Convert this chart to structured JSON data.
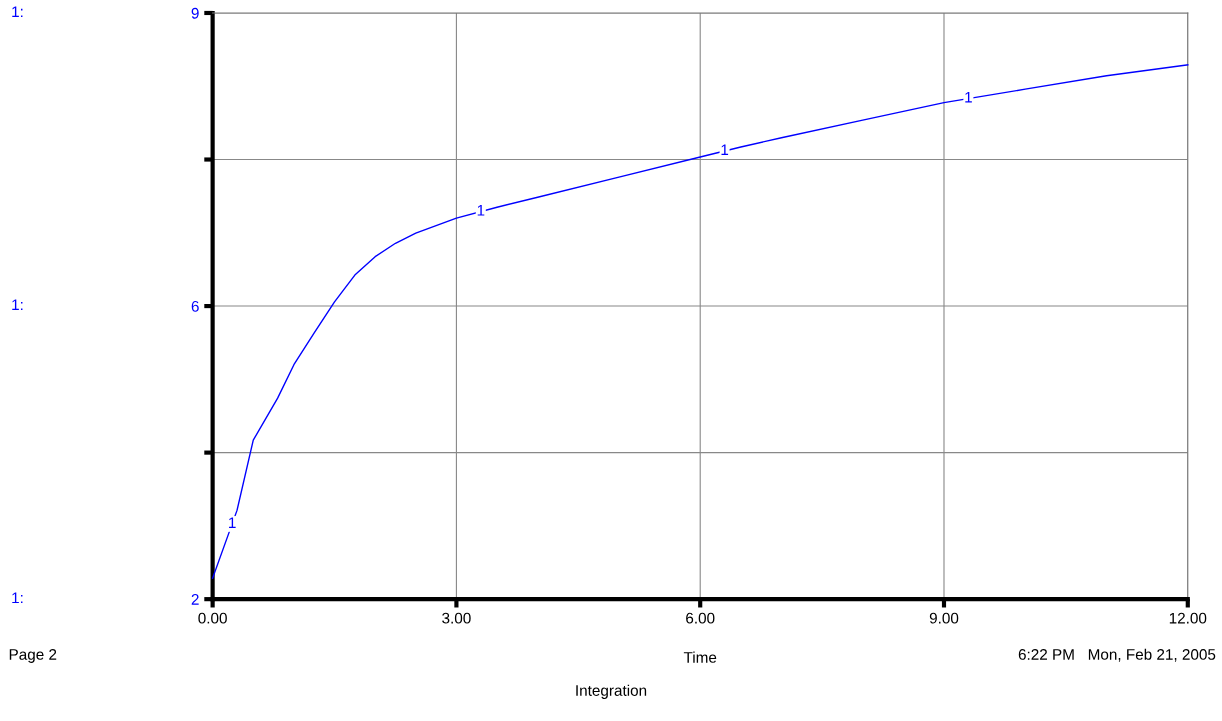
{
  "chart_data": {
    "type": "line",
    "title": "Integration",
    "xlabel": "Time",
    "x": [
      0,
      0.3,
      0.5,
      0.8,
      1.0,
      1.25,
      1.5,
      1.75,
      2.0,
      2.25,
      2.5,
      3.0,
      3.5,
      4.0,
      5.0,
      6.0,
      6.5,
      7.0,
      8.0,
      9.0,
      10.0,
      11.0,
      12.0
    ],
    "series": [
      {
        "name": "1",
        "color": "#0000ff",
        "values": [
          2.25,
          3.06,
          3.9,
          4.4,
          4.8,
          5.18,
          5.55,
          5.87,
          6.09,
          6.25,
          6.37,
          6.55,
          6.68,
          6.8,
          7.04,
          7.28,
          7.4,
          7.51,
          7.72,
          7.93,
          8.09,
          8.25,
          8.38
        ]
      }
    ],
    "xlim": [
      0,
      12
    ],
    "xticks": [
      {
        "value": 0,
        "label": "0.00"
      },
      {
        "value": 3,
        "label": "3.00"
      },
      {
        "value": 6,
        "label": "6.00"
      },
      {
        "value": 9,
        "label": "9.00"
      },
      {
        "value": 12,
        "label": "12.00"
      }
    ],
    "ylim": [
      2,
      9
    ],
    "yticks": [
      2,
      {
        "value": 3.75,
        "label": null
      },
      {
        "value": 5.5,
        "label": "6"
      },
      {
        "value": 7.25,
        "label": null
      },
      9
    ],
    "grid": true,
    "line_style": "solid",
    "marker": "none",
    "annotations": [
      "1:",
      "1:",
      "1:",
      "Page 2",
      "6:22 PM   Mon, Feb 21, 2005"
    ]
  }
}
